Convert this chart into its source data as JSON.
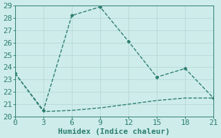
{
  "line1_x": [
    0,
    3,
    6,
    9,
    12,
    15,
    18,
    21
  ],
  "line1_y": [
    23.5,
    20.5,
    28.2,
    28.9,
    26.1,
    23.2,
    23.9,
    21.5
  ],
  "line2_x": [
    0,
    3,
    6,
    9,
    12,
    15,
    18,
    21
  ],
  "line2_y": [
    23.5,
    20.4,
    20.5,
    20.7,
    21.0,
    21.3,
    21.5,
    21.5
  ],
  "color": "#2a7d6e",
  "bg_color": "#ceecea",
  "grid_major_color": "#b8dbd8",
  "grid_minor_color": "#d4edeb",
  "xlabel": "Humidex (Indice chaleur)",
  "xlim": [
    0,
    21
  ],
  "ylim": [
    20,
    29
  ],
  "xticks": [
    0,
    3,
    6,
    9,
    12,
    15,
    18,
    21
  ],
  "yticks": [
    20,
    21,
    22,
    23,
    24,
    25,
    26,
    27,
    28,
    29
  ],
  "marker": "D",
  "markersize": 2.5,
  "linewidth": 1.0,
  "linestyle": "--",
  "font_size": 8,
  "label_font_size": 8
}
